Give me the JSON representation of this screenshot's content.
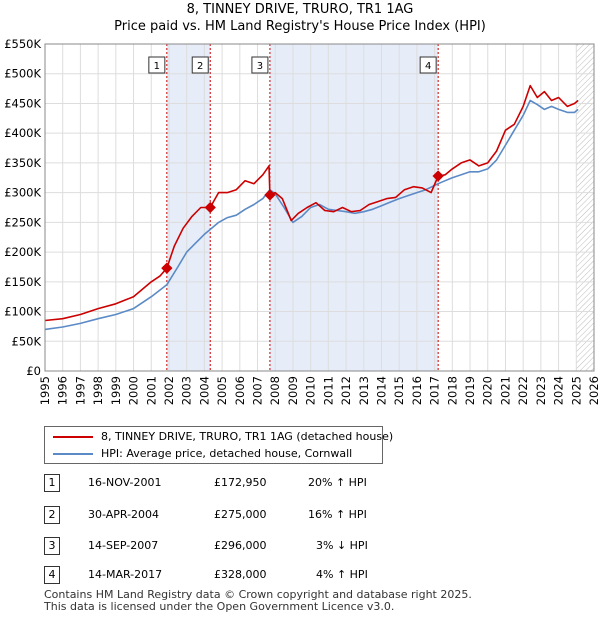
{
  "title_line1": "8, TINNEY DRIVE, TRURO, TR1 1AG",
  "title_line2": "Price paid vs. HM Land Registry's House Price Index (HPI)",
  "legend": {
    "property_label": "8, TINNEY DRIVE, TRURO, TR1 1AG (detached house)",
    "hpi_label": "HPI: Average price, detached house, Cornwall"
  },
  "colors": {
    "property": "#cc0000",
    "hpi": "#5b8ac6",
    "shade": "#e6ecf8",
    "grid": "#dddddd",
    "marker_line": "#cc0000"
  },
  "sales": [
    {
      "num": "1",
      "date": "16-NOV-2001",
      "price": "£172,950",
      "hpi": "20% ↑ HPI"
    },
    {
      "num": "2",
      "date": "30-APR-2004",
      "price": "£275,000",
      "hpi": "16% ↑ HPI"
    },
    {
      "num": "3",
      "date": "14-SEP-2007",
      "price": "£296,000",
      "hpi": "3% ↓ HPI"
    },
    {
      "num": "4",
      "date": "14-MAR-2017",
      "price": "£328,000",
      "hpi": "4% ↑ HPI"
    }
  ],
  "footer_line1": "Contains HM Land Registry data © Crown copyright and database right 2025.",
  "footer_line2": "This data is licensed under the Open Government Licence v3.0.",
  "chart_data": {
    "type": "line",
    "title": "8, TINNEY DRIVE, TRURO, TR1 1AG - Price paid vs. HM Land Registry's House Price Index (HPI)",
    "xlim": [
      1995,
      2026
    ],
    "ylim": [
      0,
      550000
    ],
    "x_ticks": [
      "1995",
      "1996",
      "1997",
      "1998",
      "1999",
      "2000",
      "2001",
      "2002",
      "2003",
      "2004",
      "2005",
      "2006",
      "2007",
      "2008",
      "2009",
      "2010",
      "2011",
      "2012",
      "2013",
      "2014",
      "2015",
      "2016",
      "2017",
      "2018",
      "2019",
      "2020",
      "2021",
      "2022",
      "2023",
      "2024",
      "2025",
      "2026"
    ],
    "y_ticks": [
      {
        "value": 0,
        "label": "£0"
      },
      {
        "value": 50000,
        "label": "£50K"
      },
      {
        "value": 100000,
        "label": "£100K"
      },
      {
        "value": 150000,
        "label": "£150K"
      },
      {
        "value": 200000,
        "label": "£200K"
      },
      {
        "value": 250000,
        "label": "£250K"
      },
      {
        "value": 300000,
        "label": "£300K"
      },
      {
        "value": 350000,
        "label": "£350K"
      },
      {
        "value": 400000,
        "label": "£400K"
      },
      {
        "value": 450000,
        "label": "£450K"
      },
      {
        "value": 500000,
        "label": "£500K"
      },
      {
        "value": 550000,
        "label": "£550K"
      }
    ],
    "shaded_ranges": [
      [
        2001.88,
        2004.33
      ],
      [
        2007.7,
        2017.2
      ]
    ],
    "hatched_range": [
      2025.0,
      2026.0
    ],
    "sale_markers": [
      {
        "label": "1",
        "x": 2001.88,
        "y": 172950
      },
      {
        "label": "2",
        "x": 2004.33,
        "y": 275000
      },
      {
        "label": "3",
        "x": 2007.7,
        "y": 296000
      },
      {
        "label": "4",
        "x": 2017.2,
        "y": 328000
      }
    ],
    "series": [
      {
        "name": "8, TINNEY DRIVE, TRURO, TR1 1AG (detached house)",
        "x": [
          1995,
          1996,
          1997,
          1998,
          1999,
          2000,
          2001,
          2001.5,
          2001.88,
          2002.3,
          2002.8,
          2003.3,
          2003.8,
          2004.33,
          2004.8,
          2005.3,
          2005.8,
          2006.3,
          2006.8,
          2007.3,
          2007.65,
          2007.7,
          2008.0,
          2008.4,
          2008.9,
          2009.3,
          2009.8,
          2010.3,
          2010.8,
          2011.3,
          2011.8,
          2012.3,
          2012.8,
          2013.3,
          2013.8,
          2014.3,
          2014.8,
          2015.3,
          2015.8,
          2016.3,
          2016.8,
          2017.2,
          2017.6,
          2018.0,
          2018.5,
          2019.0,
          2019.5,
          2020.0,
          2020.5,
          2021.0,
          2021.5,
          2022.0,
          2022.4,
          2022.8,
          2023.2,
          2023.6,
          2024.0,
          2024.5,
          2024.9,
          2025.1
        ],
        "y": [
          85000,
          88000,
          95000,
          105000,
          113000,
          125000,
          150000,
          160000,
          172950,
          210000,
          240000,
          260000,
          275000,
          275000,
          300000,
          300000,
          305000,
          320000,
          315000,
          330000,
          345000,
          296000,
          300000,
          290000,
          253000,
          265000,
          275000,
          283000,
          270000,
          268000,
          275000,
          268000,
          270000,
          280000,
          285000,
          290000,
          292000,
          305000,
          310000,
          308000,
          300000,
          328000,
          330000,
          340000,
          350000,
          355000,
          345000,
          350000,
          370000,
          405000,
          415000,
          445000,
          480000,
          460000,
          470000,
          455000,
          460000,
          445000,
          450000,
          455000
        ]
      },
      {
        "name": "HPI: Average price, detached house, Cornwall",
        "x": [
          1995,
          1996,
          1997,
          1998,
          1999,
          2000,
          2001,
          2001.88,
          2002.5,
          2003,
          2003.5,
          2004,
          2004.33,
          2004.8,
          2005.3,
          2005.8,
          2006.3,
          2006.8,
          2007.3,
          2007.7,
          2008.0,
          2008.5,
          2009.0,
          2009.5,
          2010.0,
          2010.5,
          2011.0,
          2011.5,
          2012.0,
          2012.5,
          2013.0,
          2013.5,
          2014.0,
          2014.5,
          2015.0,
          2015.5,
          2016.0,
          2016.5,
          2017.2,
          2017.6,
          2018.0,
          2018.5,
          2019.0,
          2019.5,
          2020.0,
          2020.5,
          2021.0,
          2021.5,
          2022.0,
          2022.4,
          2022.8,
          2023.2,
          2023.6,
          2024.0,
          2024.5,
          2024.9,
          2025.1
        ],
        "y": [
          70000,
          74000,
          80000,
          88000,
          95000,
          105000,
          125000,
          145000,
          175000,
          200000,
          215000,
          230000,
          238000,
          250000,
          258000,
          262000,
          272000,
          280000,
          290000,
          305000,
          298000,
          275000,
          250000,
          260000,
          275000,
          280000,
          272000,
          270000,
          268000,
          265000,
          268000,
          272000,
          278000,
          284000,
          290000,
          295000,
          300000,
          305000,
          315000,
          320000,
          325000,
          330000,
          335000,
          335000,
          340000,
          355000,
          380000,
          405000,
          430000,
          455000,
          448000,
          440000,
          445000,
          440000,
          435000,
          435000,
          440000
        ]
      }
    ]
  }
}
